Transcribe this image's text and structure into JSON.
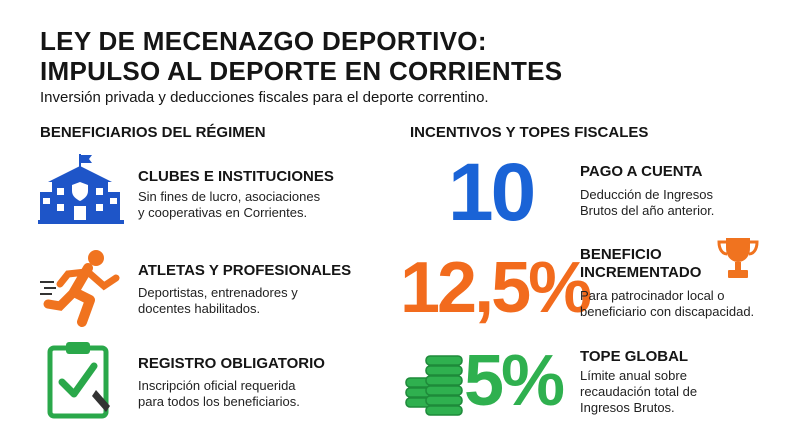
{
  "header": {
    "title_lines": [
      "LEY DE MECENAZGO DEPORTIVO:",
      "IMPULSO AL DEPORTE EN CORRIENTES"
    ],
    "subtitle": "Inversión privada y deducciones fiscales para el deporte correntino."
  },
  "beneficiaries": {
    "heading": "BENEFICIARIOS DEL RÉGIMEN",
    "items": [
      {
        "title": "CLUBES E INSTITUCIONES",
        "desc_lines": [
          "Sin fines de lucro, asociaciones",
          "y cooperativas en Corrientes."
        ]
      },
      {
        "title": "ATLETAS Y PROFESIONALES",
        "desc_lines": [
          "Deportistas, entrenadores y",
          "docentes habilitados."
        ]
      },
      {
        "title": "REGISTRO OBLIGATORIO",
        "desc_lines": [
          "Inscripción oficial requerida",
          "para todos los beneficiarios."
        ]
      }
    ]
  },
  "incentives": {
    "heading": "INCENTIVOS Y TOPES FISCALES",
    "items": [
      {
        "figure": "10",
        "title_lines": [
          "PAGO A CUENTA"
        ],
        "desc_lines": [
          "Deducción de Ingresos",
          "Brutos del año anterior."
        ]
      },
      {
        "figure": "12,5%",
        "title_lines": [
          "BENEFICIO",
          "INCREMENTADO"
        ],
        "desc_lines": [
          "Para patrocinador local o",
          "beneficiario con discapacidad."
        ]
      },
      {
        "figure": "5%",
        "title_lines": [
          "TOPE GLOBAL"
        ],
        "desc_lines": [
          "Límite anual sobre",
          "recaudación total de",
          "Ingresos Brutos."
        ]
      }
    ]
  }
}
